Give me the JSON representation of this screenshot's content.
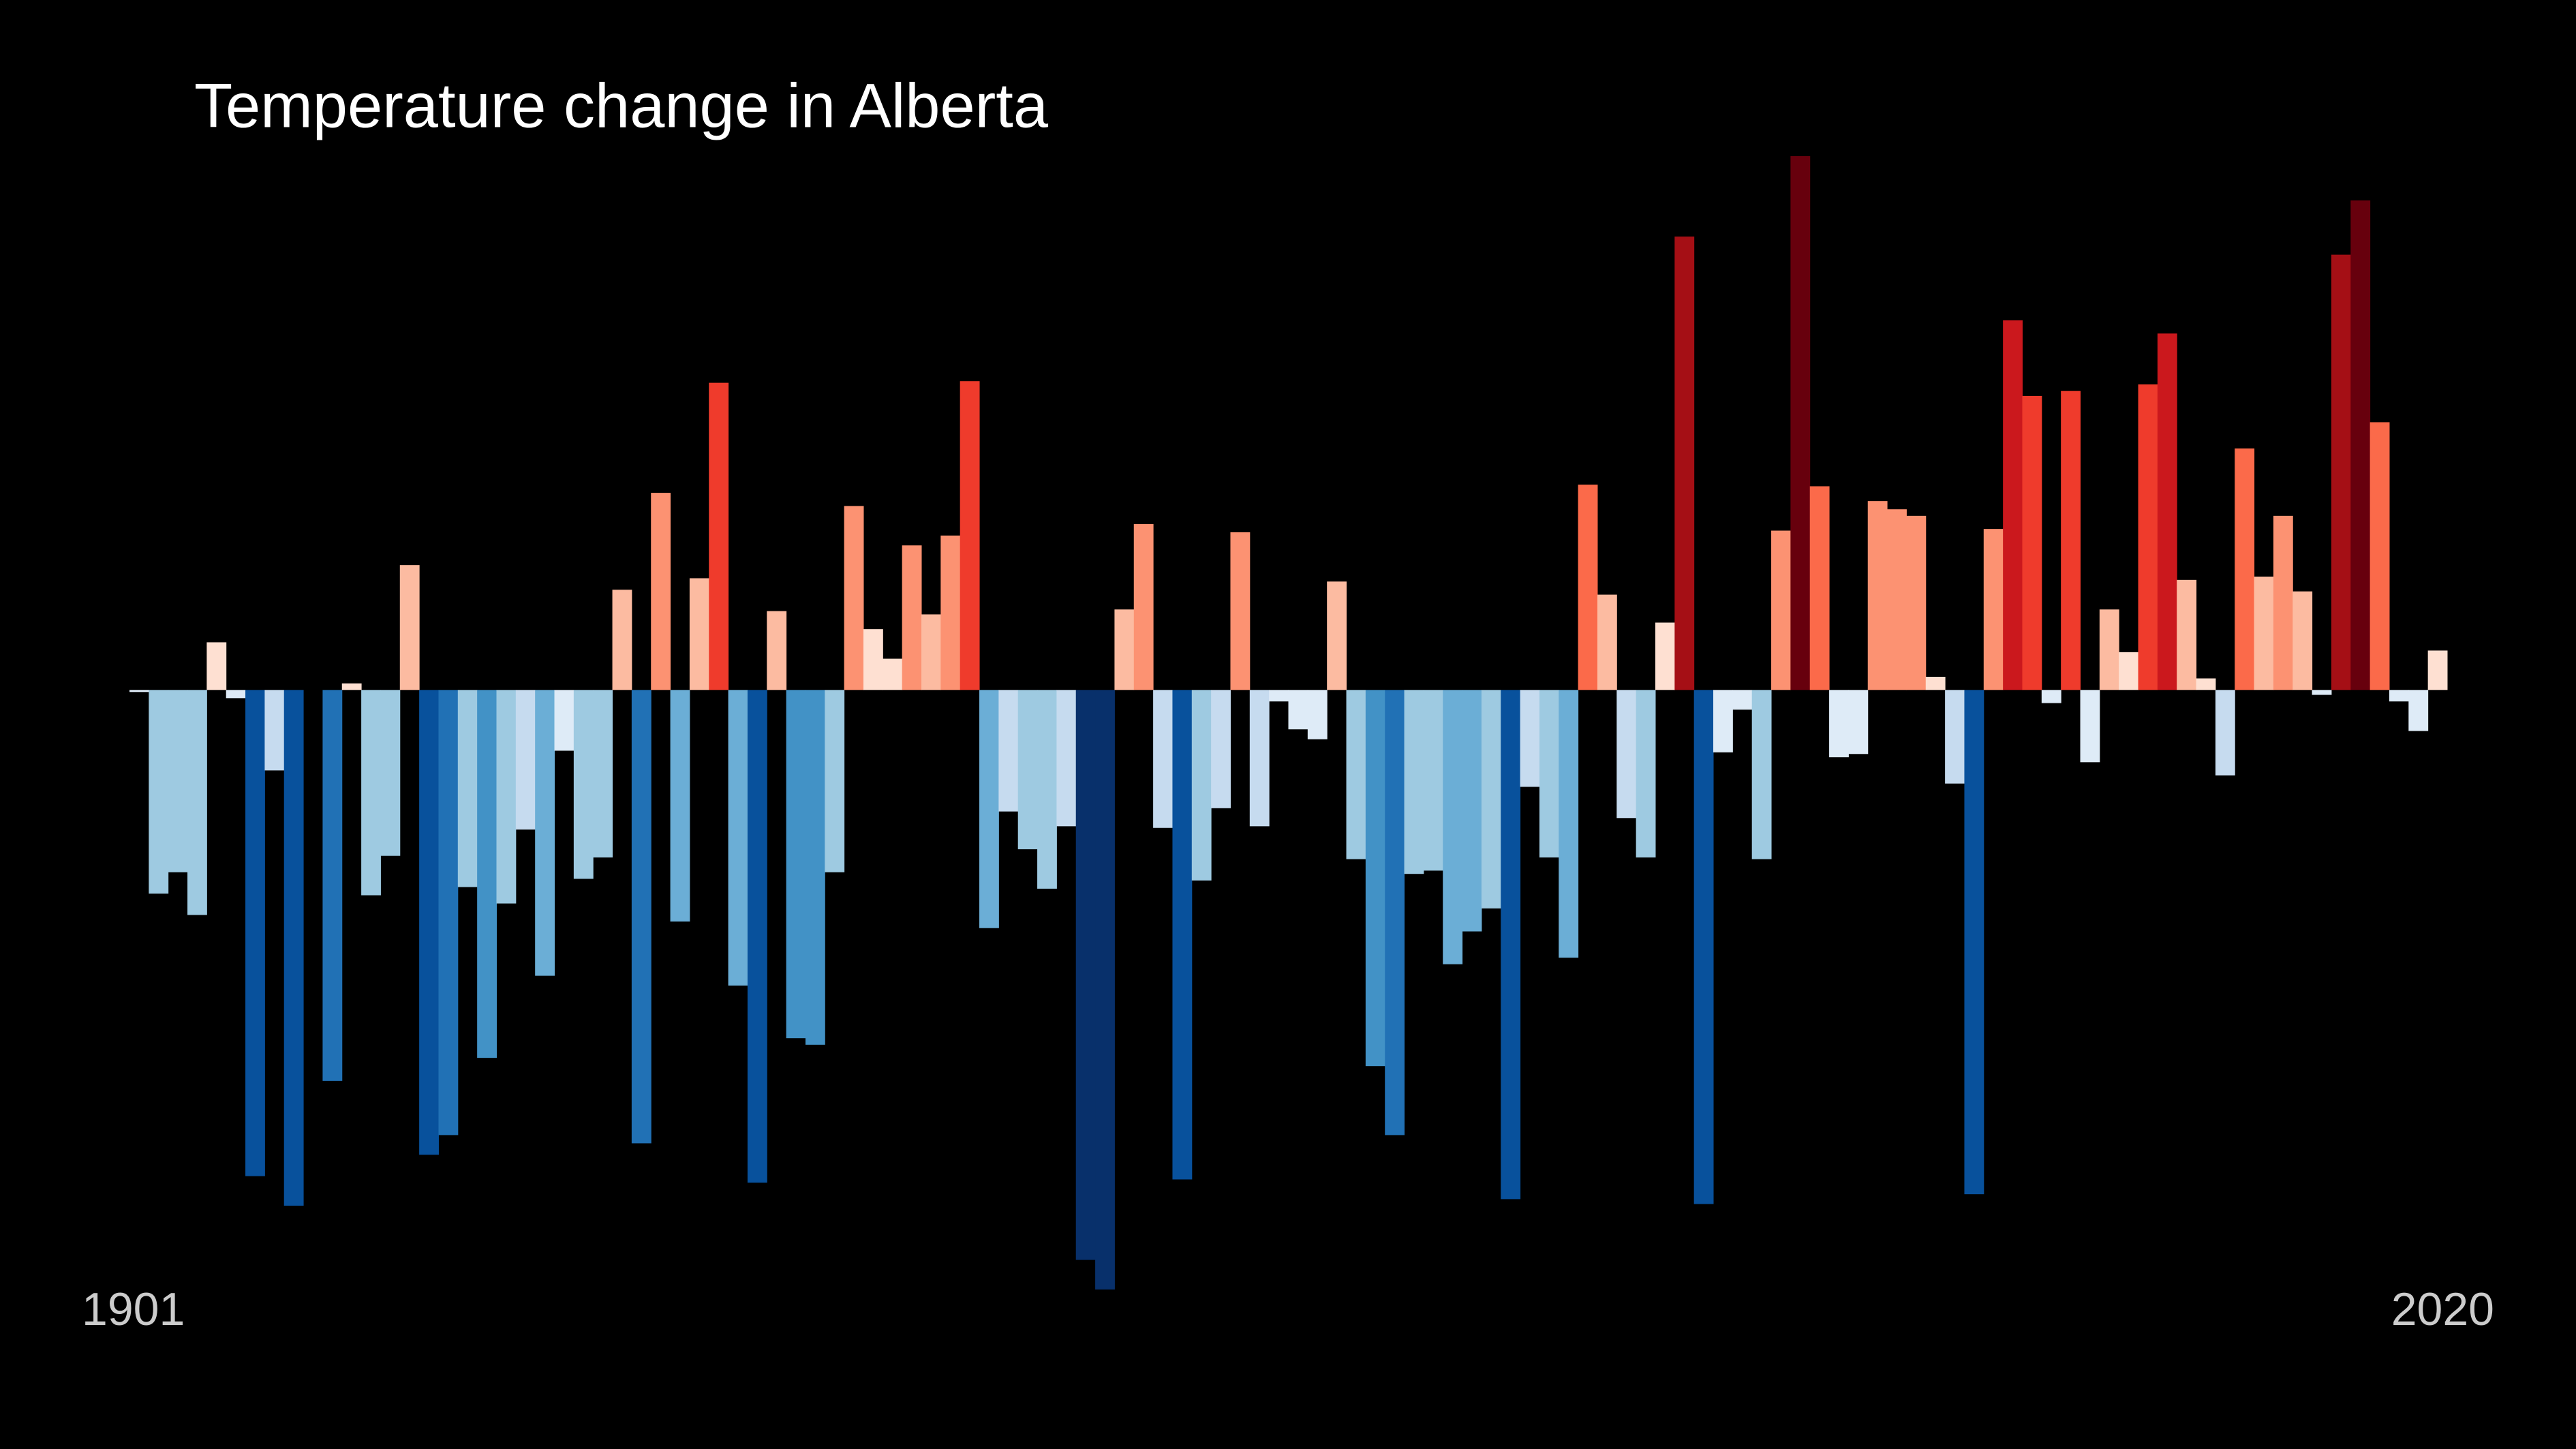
{
  "chart_data": {
    "type": "bar",
    "title": "Temperature change in Alberta",
    "categories": [
      "1901",
      null,
      null,
      null,
      null,
      null,
      null,
      null,
      null,
      null,
      null,
      null,
      null,
      null,
      null,
      null,
      null,
      null,
      null,
      null,
      null,
      null,
      null,
      null,
      null,
      null,
      null,
      null,
      null,
      null,
      null,
      null,
      null,
      null,
      null,
      null,
      null,
      null,
      null,
      null,
      null,
      null,
      null,
      null,
      null,
      null,
      null,
      null,
      null,
      null,
      null,
      null,
      null,
      null,
      null,
      null,
      null,
      null,
      null,
      null,
      null,
      null,
      null,
      null,
      null,
      null,
      null,
      null,
      null,
      null,
      null,
      null,
      null,
      null,
      null,
      null,
      null,
      null,
      null,
      null,
      null,
      null,
      null,
      null,
      null,
      null,
      null,
      null,
      null,
      null,
      null,
      null,
      null,
      null,
      null,
      null,
      null,
      null,
      null,
      null,
      null,
      null,
      null,
      null,
      null,
      null,
      null,
      null,
      null,
      null,
      null,
      null,
      null,
      null,
      null,
      null,
      null,
      null,
      null,
      "2020"
    ],
    "values": [
      -0.01,
      -1.24,
      -1.11,
      -1.37,
      0.29,
      -0.05,
      -2.96,
      -0.49,
      -3.14,
      0,
      -2.38,
      0.04,
      -1.25,
      -1.01,
      0.76,
      -2.83,
      -2.71,
      -1.2,
      -2.24,
      -1.3,
      -0.85,
      -1.74,
      -0.37,
      -1.15,
      -1.02,
      0.61,
      -2.76,
      1.2,
      -1.41,
      0.68,
      1.87,
      -1.8,
      -3.0,
      0.48,
      -2.12,
      -2.16,
      -1.11,
      1.12,
      0.37,
      0.19,
      0.88,
      0.46,
      0.94,
      1.88,
      -1.45,
      -0.74,
      -0.97,
      -1.21,
      -0.83,
      -3.47,
      -3.65,
      0.49,
      1.01,
      -0.84,
      -2.98,
      -1.16,
      -0.72,
      0.96,
      -0.83,
      -0.07,
      -0.24,
      -0.3,
      0.66,
      -1.03,
      -2.29,
      -2.71,
      -1.12,
      -1.1,
      -1.67,
      -1.47,
      -1.33,
      -3.1,
      -0.59,
      -1.02,
      -1.63,
      1.25,
      0.58,
      -0.78,
      -1.02,
      0.41,
      2.76,
      -3.13,
      -0.38,
      -0.12,
      -1.03,
      0.97,
      3.25,
      1.24,
      -0.41,
      -0.39,
      1.15,
      1.1,
      1.06,
      0.08,
      -0.57,
      -3.07,
      0.98,
      2.25,
      1.79,
      -0.08,
      1.82,
      -0.44,
      0.49,
      0.23,
      1.86,
      2.17,
      0.67,
      0.07,
      -0.52,
      1.47,
      0.69,
      1.06,
      0.6,
      -0.03,
      2.65,
      2.98,
      1.63,
      -0.07,
      -0.25,
      0.24
    ],
    "ylim": [
      -3.7,
      3.3
    ],
    "palette": [
      "#08306b",
      "#08519c",
      "#2171b5",
      "#4292c6",
      "#6baed6",
      "#9ecae1",
      "#c6dbef",
      "#deebf7",
      "#fee0d2",
      "#fcbba1",
      "#fc9272",
      "#fb6a4a",
      "#ef3b2c",
      "#cb181d",
      "#a50f15",
      "#67000d"
    ],
    "background": "#000000"
  }
}
